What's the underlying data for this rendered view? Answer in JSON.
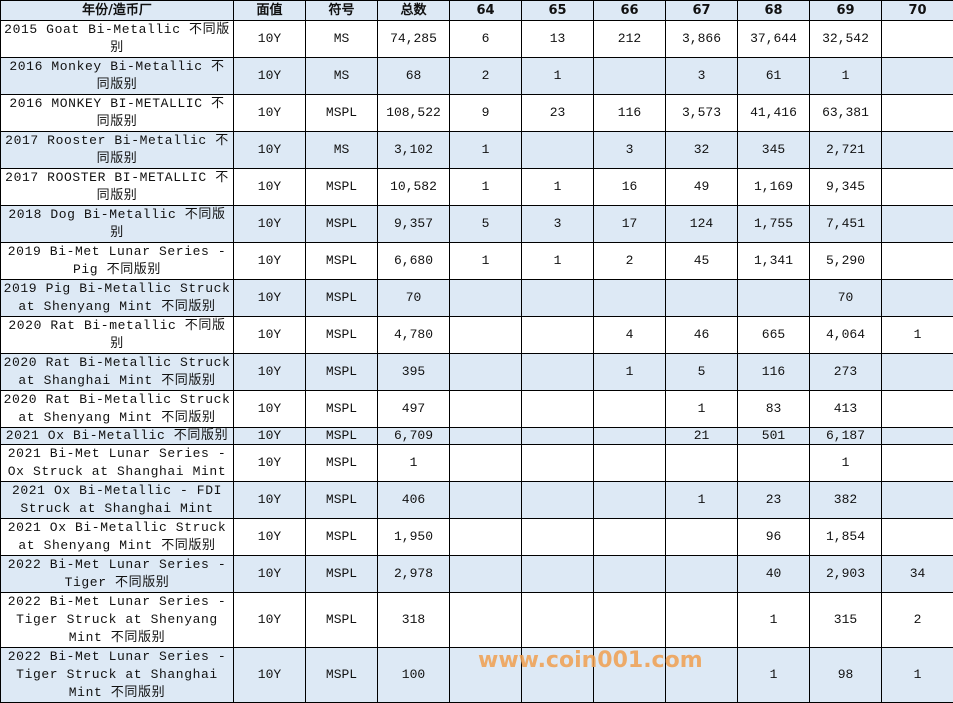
{
  "headers": [
    "年份/造币厂",
    "面值",
    "符号",
    "总数",
    "64",
    "65",
    "66",
    "67",
    "68",
    "69",
    "70"
  ],
  "rows": [
    {
      "name": "2015 Goat Bi-Metallic 不同版别",
      "denom": "10Y",
      "symbol": "MS",
      "total": "74,285",
      "g": [
        "6",
        "13",
        "212",
        "3,866",
        "37,644",
        "32,542",
        ""
      ]
    },
    {
      "name": "2016 Monkey Bi-Metallic 不同版别",
      "denom": "10Y",
      "symbol": "MS",
      "total": "68",
      "g": [
        "2",
        "1",
        "",
        "3",
        "61",
        "1",
        ""
      ]
    },
    {
      "name": "2016 MONKEY BI-METALLIC 不同版别",
      "denom": "10Y",
      "symbol": "MSPL",
      "total": "108,522",
      "g": [
        "9",
        "23",
        "116",
        "3,573",
        "41,416",
        "63,381",
        ""
      ]
    },
    {
      "name": "2017 Rooster Bi-Metallic 不同版别",
      "denom": "10Y",
      "symbol": "MS",
      "total": "3,102",
      "g": [
        "1",
        "",
        "3",
        "32",
        "345",
        "2,721",
        ""
      ]
    },
    {
      "name": "2017 ROOSTER BI-METALLIC 不同版别",
      "denom": "10Y",
      "symbol": "MSPL",
      "total": "10,582",
      "g": [
        "1",
        "1",
        "16",
        "49",
        "1,169",
        "9,345",
        ""
      ]
    },
    {
      "name": "2018 Dog Bi-Metallic 不同版别",
      "denom": "10Y",
      "symbol": "MSPL",
      "total": "9,357",
      "g": [
        "5",
        "3",
        "17",
        "124",
        "1,755",
        "7,451",
        ""
      ]
    },
    {
      "name": "2019 Bi-Met Lunar Series - Pig 不同版别",
      "denom": "10Y",
      "symbol": "MSPL",
      "total": "6,680",
      "g": [
        "1",
        "1",
        "2",
        "45",
        "1,341",
        "5,290",
        ""
      ]
    },
    {
      "name": "2019 Pig Bi-Metallic Struck at Shenyang Mint 不同版别",
      "denom": "10Y",
      "symbol": "MSPL",
      "total": "70",
      "g": [
        "",
        "",
        "",
        "",
        "",
        "70",
        ""
      ]
    },
    {
      "name": "2020 Rat Bi-metallic 不同版别",
      "denom": "10Y",
      "symbol": "MSPL",
      "total": "4,780",
      "g": [
        "",
        "",
        "4",
        "46",
        "665",
        "4,064",
        "1"
      ]
    },
    {
      "name": "2020 Rat Bi-Metallic Struck at Shanghai Mint 不同版别",
      "denom": "10Y",
      "symbol": "MSPL",
      "total": "395",
      "g": [
        "",
        "",
        "1",
        "5",
        "116",
        "273",
        ""
      ]
    },
    {
      "name": "2020 Rat Bi-Metallic Struck at Shenyang Mint 不同版别",
      "denom": "10Y",
      "symbol": "MSPL",
      "total": "497",
      "g": [
        "",
        "",
        "",
        "1",
        "83",
        "413",
        ""
      ]
    },
    {
      "name": "2021 Ox Bi-Metallic 不同版别",
      "denom": "10Y",
      "symbol": "MSPL",
      "total": "6,709",
      "g": [
        "",
        "",
        "",
        "21",
        "501",
        "6,187",
        ""
      ]
    },
    {
      "name": "2021 Bi-Met Lunar Series - Ox Struck at Shanghai Mint",
      "denom": "10Y",
      "symbol": "MSPL",
      "total": "1",
      "g": [
        "",
        "",
        "",
        "",
        "",
        "1",
        ""
      ]
    },
    {
      "name": "2021 Ox Bi-Metallic - FDI Struck at Shanghai Mint",
      "denom": "10Y",
      "symbol": "MSPL",
      "total": "406",
      "g": [
        "",
        "",
        "",
        "1",
        "23",
        "382",
        ""
      ]
    },
    {
      "name": "2021 Ox Bi-Metallic Struck at Shenyang Mint 不同版别",
      "denom": "10Y",
      "symbol": "MSPL",
      "total": "1,950",
      "g": [
        "",
        "",
        "",
        "",
        "96",
        "1,854",
        ""
      ]
    },
    {
      "name": "2022 Bi-Met Lunar Series - Tiger 不同版别",
      "denom": "10Y",
      "symbol": "MSPL",
      "total": "2,978",
      "g": [
        "",
        "",
        "",
        "",
        "40",
        "2,903",
        "34"
      ]
    },
    {
      "name": "2022 Bi-Met Lunar Series - Tiger Struck at Shenyang Mint 不同版别",
      "denom": "10Y",
      "symbol": "MSPL",
      "total": "318",
      "g": [
        "",
        "",
        "",
        "",
        "1",
        "315",
        "2"
      ]
    },
    {
      "name": "2022 Bi-Met Lunar Series - Tiger Struck at Shanghai Mint 不同版别",
      "denom": "10Y",
      "symbol": "MSPL",
      "total": "100",
      "g": [
        "",
        "",
        "",
        "",
        "1",
        "98",
        "1"
      ]
    }
  ],
  "watermark": "www.coin001.com",
  "colors": {
    "header_bg": "#dde9f5",
    "stripe_bg": "#dde9f5",
    "watermark": "#f0a050"
  }
}
